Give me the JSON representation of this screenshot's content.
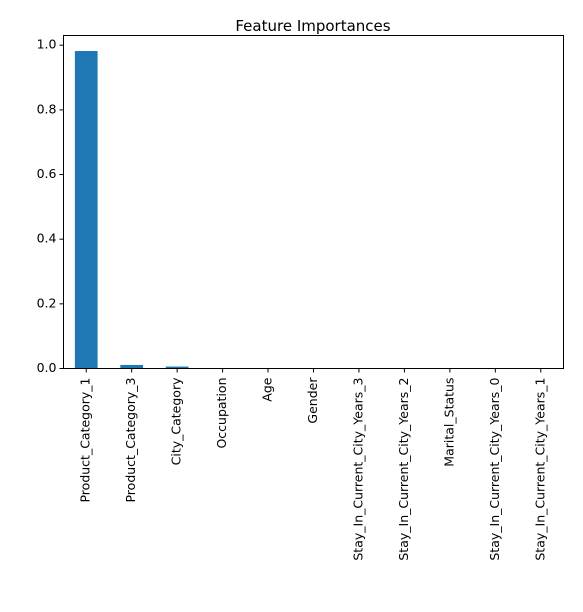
{
  "chart_data": {
    "type": "bar",
    "title": "Feature Importances",
    "xlabel": "",
    "ylabel": "",
    "categories": [
      "Product_Category_1",
      "Product_Category_3",
      "City_Category",
      "Occupation",
      "Age",
      "Gender",
      "Stay_In_Current_City_Years_3",
      "Stay_In_Current_City_Years_2",
      "Marital_Status",
      "Stay_In_Current_City_Years_0",
      "Stay_In_Current_City_Years_1"
    ],
    "values": [
      0.982,
      0.011,
      0.006,
      0.0005,
      0.0004,
      0.0003,
      0.0002,
      0.0002,
      0.0001,
      0.0001,
      0.0001
    ],
    "ylim": [
      0,
      1.03
    ],
    "yticks": [
      "0.0",
      "0.2",
      "0.4",
      "0.6",
      "0.8",
      "1.0"
    ],
    "bar_color": "#1f77b4",
    "grid": false,
    "legend": "none"
  }
}
